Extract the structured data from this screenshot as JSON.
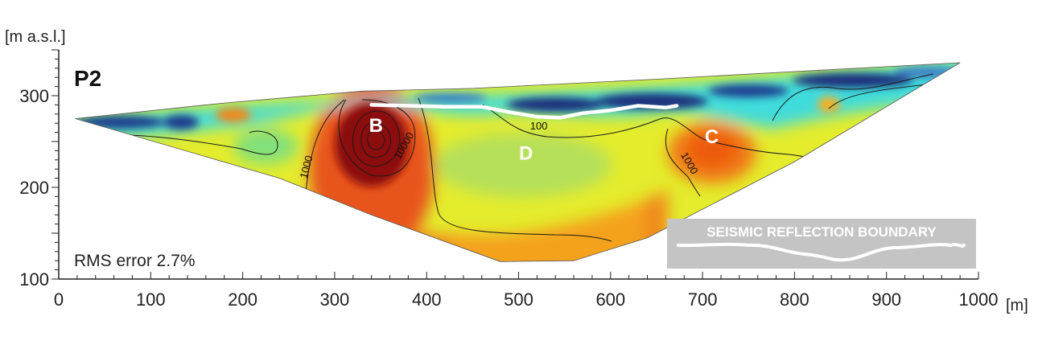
{
  "chart_data": {
    "type": "heatmap",
    "profile_label": "P2",
    "ylabel": "[m a.s.l.]",
    "xlabel": "[m]",
    "xlim": [
      0,
      1000
    ],
    "ylim": [
      100,
      350
    ],
    "x_ticks": [
      0,
      100,
      200,
      300,
      400,
      500,
      600,
      700,
      800,
      900,
      1000
    ],
    "y_ticks": [
      100,
      200,
      300
    ],
    "rms_label": "RMS error 2.7%",
    "legend_label": "SEISMIC REFLECTION BOUNDARY",
    "annotations": [
      {
        "text": "B",
        "x": 345,
        "y": 266
      },
      {
        "text": "C",
        "x": 710,
        "y": 254
      },
      {
        "text": "D",
        "x": 508,
        "y": 236
      }
    ],
    "contour_labels": [
      {
        "text": "1000",
        "x": 270,
        "y": 222,
        "angle": -75
      },
      {
        "text": "10000",
        "x": 376,
        "y": 245,
        "angle": -60
      },
      {
        "text": "100",
        "x": 522,
        "y": 266,
        "angle": 0
      },
      {
        "text": "1000",
        "x": 685,
        "y": 226,
        "angle": 60
      }
    ],
    "topography": [
      [
        18,
        275
      ],
      [
        180,
        292
      ],
      [
        330,
        305
      ],
      [
        450,
        308
      ],
      [
        650,
        318
      ],
      [
        830,
        328
      ],
      [
        980,
        336
      ]
    ],
    "profile_bottom": [
      [
        18,
        275
      ],
      [
        240,
        210
      ],
      [
        340,
        170
      ],
      [
        480,
        119
      ],
      [
        560,
        120
      ],
      [
        640,
        145
      ],
      [
        800,
        228
      ],
      [
        980,
        336
      ]
    ],
    "seismic_boundary": [
      [
        340,
        290
      ],
      [
        380,
        289
      ],
      [
        420,
        288
      ],
      [
        460,
        288
      ],
      [
        490,
        282
      ],
      [
        520,
        277
      ],
      [
        545,
        276
      ],
      [
        570,
        281
      ],
      [
        600,
        284
      ],
      [
        630,
        289
      ],
      [
        660,
        287
      ],
      [
        672,
        289
      ]
    ],
    "colors": {
      "very_low": "#1a2f7a",
      "low": "#3fe0e0",
      "medium": "#e6ee2a",
      "high": "#f28a1a",
      "very_high": "#8b1010",
      "boundary": "#ffffff"
    }
  }
}
